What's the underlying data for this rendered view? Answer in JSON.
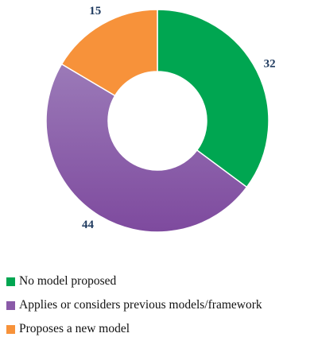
{
  "chart_data": {
    "type": "pie",
    "variant": "donut",
    "title": "",
    "slices": [
      {
        "label": "No model proposed",
        "value": 32,
        "color": "#00a651"
      },
      {
        "label": "Applies or considers previous models/framework",
        "value": 44,
        "color": "#8a5aa8"
      },
      {
        "label": "Proposes a new model",
        "value": 15,
        "color": "#f7923a"
      }
    ],
    "start_angle_deg": 0,
    "direction": "clockwise",
    "data_labels_shown": true,
    "legend_position": "bottom-left"
  }
}
